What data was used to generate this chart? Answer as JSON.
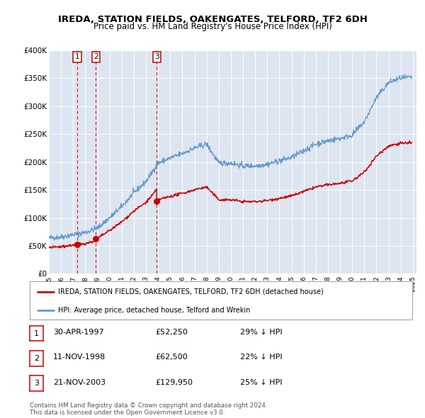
{
  "title": "IREDA, STATION FIELDS, OAKENGATES, TELFORD, TF2 6DH",
  "subtitle": "Price paid vs. HM Land Registry's House Price Index (HPI)",
  "red_label": "IREDA, STATION FIELDS, OAKENGATES, TELFORD, TF2 6DH (detached house)",
  "blue_label": "HPI: Average price, detached house, Telford and Wrekin",
  "sale_points": [
    {
      "num": 1,
      "date": "30-APR-1997",
      "price": 52250,
      "year": 1997.33,
      "pct": "29%",
      "dir": "↓"
    },
    {
      "num": 2,
      "date": "11-NOV-1998",
      "price": 62500,
      "year": 1998.86,
      "pct": "22%",
      "dir": "↓"
    },
    {
      "num": 3,
      "date": "21-NOV-2003",
      "price": 129950,
      "year": 2003.89,
      "pct": "25%",
      "dir": "↓"
    }
  ],
  "footer1": "Contains HM Land Registry data © Crown copyright and database right 2024.",
  "footer2": "This data is licensed under the Open Government Licence v3.0.",
  "ylim": [
    0,
    400000
  ],
  "xlim_start": 1995.0,
  "xlim_end": 2025.3,
  "plot_bg_color": "#dde5f0",
  "red_color": "#cc0000",
  "blue_color": "#6699cc",
  "grid_color": "#ffffff",
  "yticks": [
    0,
    50000,
    100000,
    150000,
    200000,
    250000,
    300000,
    350000,
    400000
  ],
  "ylabels": [
    "£0",
    "£50K",
    "£100K",
    "£150K",
    "£200K",
    "£250K",
    "£300K",
    "£350K",
    "£400K"
  ]
}
